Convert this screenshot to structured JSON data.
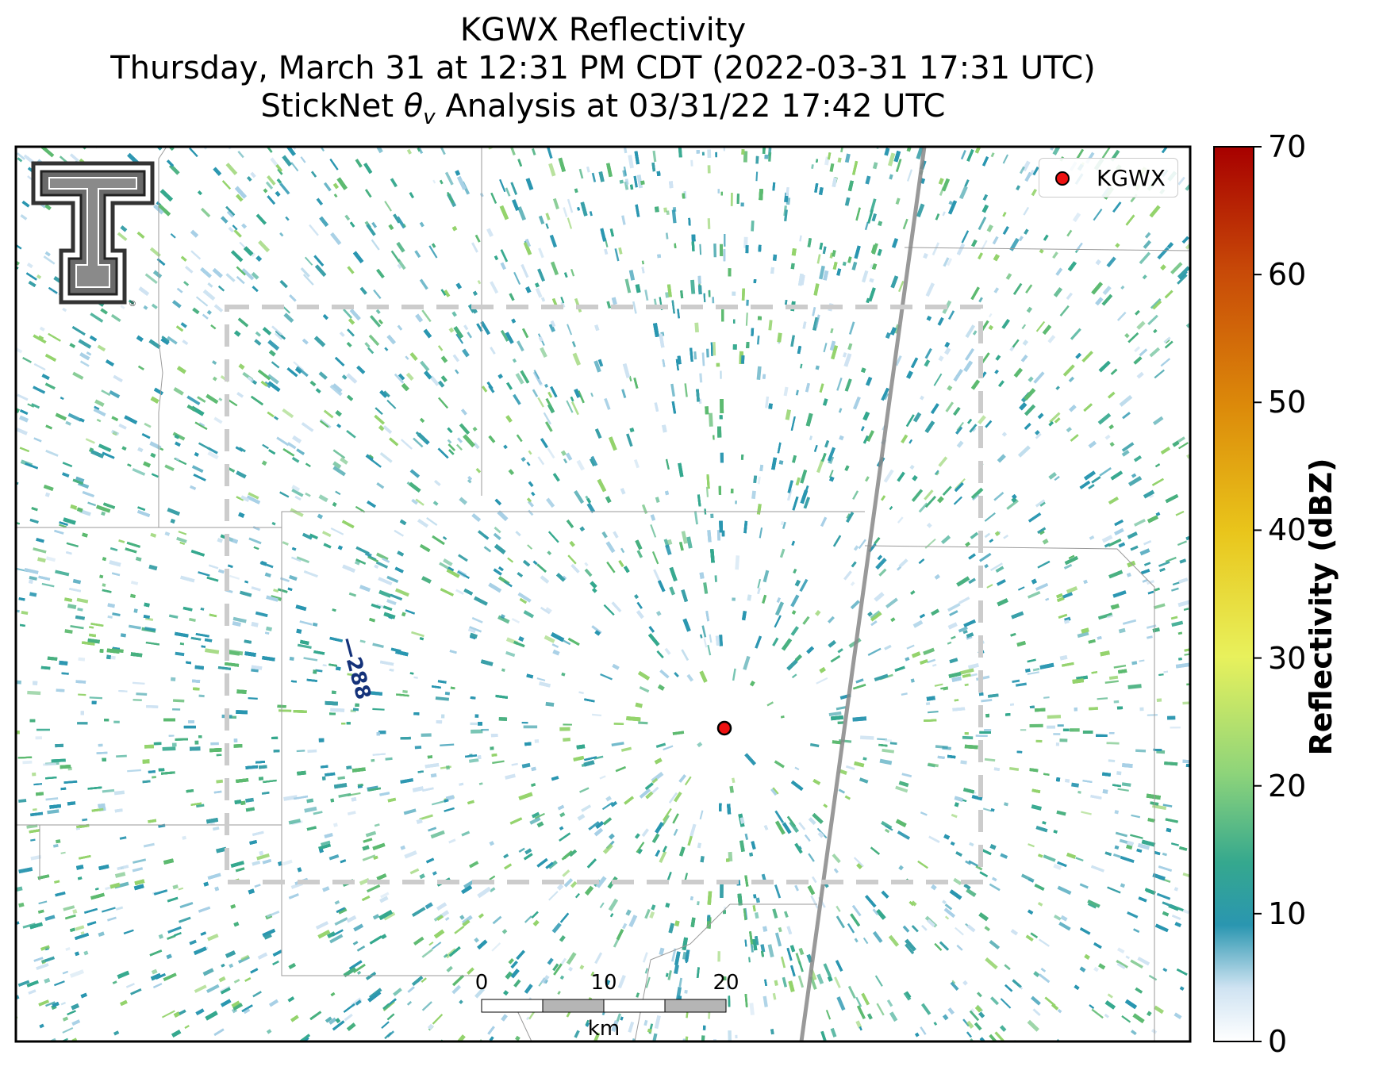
{
  "title": {
    "line1": "KGWX Reflectivity",
    "line2": "Thursday, March 31 at 12:31 PM CDT (2022-03-31 17:31 UTC)",
    "line3_prefix": "StickNet ",
    "line3_symbol": "θ",
    "line3_subscript": "v",
    "line3_suffix": " Analysis at 03/31/22 17:42 UTC"
  },
  "legend": {
    "label": "KGWX",
    "marker_color": "#ee1111"
  },
  "colorbar": {
    "label": "Reflectivity (dBZ)",
    "ticks": [
      "0",
      "10",
      "20",
      "30",
      "40",
      "50",
      "60",
      "70"
    ],
    "range": [
      0,
      70
    ],
    "colors": [
      "#ffffff",
      "#cfe3f2",
      "#2a96b0",
      "#35a88e",
      "#5dba70",
      "#94d36c",
      "#e8f15c",
      "#e9c51b",
      "#dc8a0a",
      "#c84a08",
      "#a70000"
    ]
  },
  "scale_bar": {
    "labels": [
      "0",
      "10",
      "20"
    ],
    "unit": "km"
  },
  "contour": {
    "label": "288",
    "color": "#14327a"
  },
  "radar_site": {
    "name": "KGWX",
    "marker_color": "#ee1111"
  },
  "analysis_box": {
    "style": "dashed",
    "color": "#cccccc"
  },
  "logo": {
    "text": "T",
    "registered": "®"
  }
}
